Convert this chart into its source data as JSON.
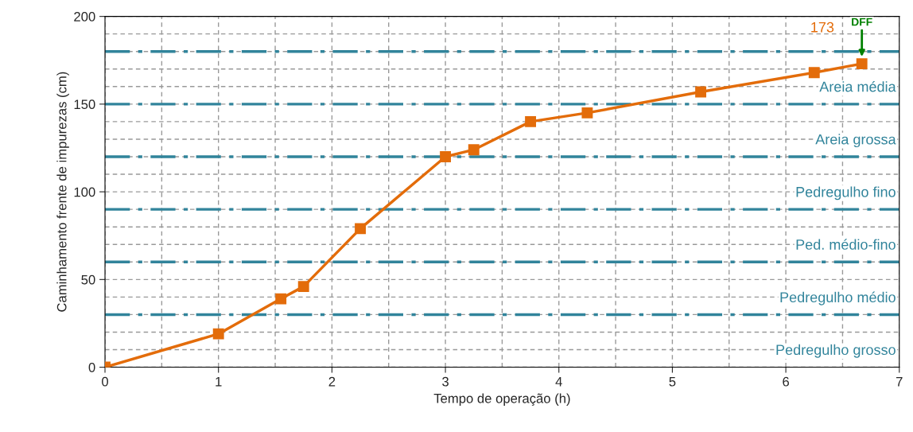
{
  "chart_data": {
    "type": "line",
    "xlabel": "Tempo de operação (h)",
    "ylabel": "Caminhamento frente de impurezas (cm)",
    "xlim": [
      0,
      7
    ],
    "xticks": [
      0,
      1,
      2,
      3,
      4,
      5,
      6,
      7
    ],
    "ylim": [
      0,
      200
    ],
    "yticks": [
      0,
      50,
      100,
      150,
      200
    ],
    "grid": true,
    "marker": "square",
    "line_style": "solid",
    "series": [
      {
        "color": "#e36c0a",
        "x": [
          0,
          1,
          1.55,
          1.75,
          2.25,
          3,
          3.25,
          3.75,
          4.25,
          5.25,
          6.25,
          6.67
        ],
        "values": [
          0,
          19,
          39,
          46,
          79,
          120,
          124,
          140,
          145,
          157,
          168,
          173
        ],
        "value_labels": [
          null,
          null,
          null,
          null,
          null,
          null,
          null,
          null,
          null,
          null,
          null,
          "173"
        ]
      }
    ],
    "ref_lines": [
      {
        "axis": "y",
        "value": 30,
        "color": "#31849b",
        "line_style": "dashed",
        "label": "Pedregulho grosso"
      },
      {
        "axis": "y",
        "value": 60,
        "color": "#31849b",
        "line_style": "dashed",
        "label": "Pedregulho médio"
      },
      {
        "axis": "y",
        "value": 90,
        "color": "#31849b",
        "line_style": "dashed",
        "label": "Ped. médio-fino"
      },
      {
        "axis": "y",
        "value": 120,
        "color": "#31849b",
        "line_style": "dashed",
        "label": "Pedregulho fino"
      },
      {
        "axis": "y",
        "value": 150,
        "color": "#31849b",
        "line_style": "dashed",
        "label": "Areia grossa"
      },
      {
        "axis": "y",
        "value": 180,
        "color": "#31849b",
        "line_style": "dashed",
        "label": "Areia média"
      }
    ],
    "annotations": [
      {
        "text": "DFF",
        "x": 6.67,
        "y": 177
      }
    ]
  }
}
